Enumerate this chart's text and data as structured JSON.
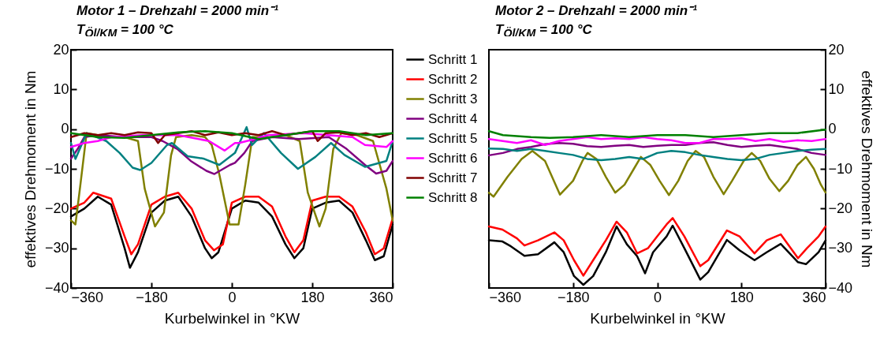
{
  "chart_data": [
    {
      "type": "line",
      "title": "Motor 1 – Drehzahl = 2000 min⁻¹",
      "subtitle": "T$_{Öl/KM}$ = 100 °C",
      "xlabel": "Kurbelwinkel in °KW",
      "ylabel": "effektives Drehmoment in Nm",
      "xlim": [
        -360,
        360
      ],
      "xticks": [
        -360,
        -180,
        0,
        180,
        360
      ],
      "ylim": [
        -40,
        20
      ],
      "yticks": [
        -40,
        -30,
        -20,
        -10,
        0,
        10,
        20
      ],
      "grid": false,
      "legend": "right",
      "series": [
        {
          "name": "Schritt 1",
          "color": "#000000",
          "x": [
            -360,
            -330,
            -300,
            -270,
            -240,
            -228,
            -210,
            -180,
            -150,
            -120,
            -90,
            -60,
            -45,
            -30,
            0,
            30,
            60,
            90,
            120,
            140,
            160,
            180,
            210,
            240,
            270,
            300,
            320,
            340,
            360
          ],
          "values": [
            -22,
            -20,
            -17,
            -19,
            -30,
            -34.9,
            -31,
            -21,
            -18,
            -17,
            -22,
            -30,
            -32.5,
            -31,
            -20,
            -18,
            -18.5,
            -22,
            -29,
            -32.5,
            -30,
            -20,
            -18.5,
            -18,
            -21,
            -28,
            -33,
            -32,
            -24
          ]
        },
        {
          "name": "Schritt 2",
          "color": "#ff0000",
          "x": [
            -360,
            -330,
            -310,
            -270,
            -240,
            -225,
            -210,
            -180,
            -150,
            -120,
            -90,
            -60,
            -40,
            -20,
            0,
            30,
            60,
            90,
            120,
            140,
            160,
            180,
            210,
            240,
            270,
            300,
            320,
            340,
            360
          ],
          "values": [
            -20,
            -18.5,
            -16,
            -17.5,
            -27,
            -31.5,
            -29,
            -19,
            -17,
            -16,
            -20,
            -28,
            -30.5,
            -29,
            -18.5,
            -17,
            -17,
            -19.5,
            -27,
            -31,
            -28,
            -18,
            -17,
            -17,
            -19.5,
            -26,
            -31.5,
            -30,
            -22.5
          ]
        },
        {
          "name": "Schritt 3",
          "color": "#808000",
          "x": [
            -360,
            -350,
            -340,
            -325,
            -300,
            -270,
            -240,
            -210,
            -195,
            -172,
            -152,
            -136,
            -125,
            -90,
            -60,
            -45,
            -28,
            -5,
            15,
            30,
            46,
            90,
            120,
            152,
            170,
            196,
            210,
            227,
            245,
            280,
            316,
            346,
            360
          ],
          "values": [
            -23,
            -24,
            -15,
            -1,
            -1.5,
            -2,
            -2,
            -3,
            -15,
            -24.5,
            -21,
            -6.6,
            -2,
            -1.5,
            -2,
            -4,
            -11.4,
            -24,
            -24,
            -14,
            -2,
            -2,
            -1.5,
            -3,
            -16,
            -24.5,
            -20,
            -5,
            -1,
            -1.5,
            -3,
            -15,
            -23
          ]
        },
        {
          "name": "Schritt 4",
          "color": "#800080",
          "x": [
            -360,
            -345,
            -330,
            -300,
            -240,
            -180,
            -155,
            -122,
            -92,
            -57,
            -39,
            -4,
            7,
            28,
            46,
            90,
            150,
            217,
            257,
            298,
            323,
            346,
            360
          ],
          "values": [
            -7.4,
            -5,
            -2,
            -1.5,
            -2,
            -2,
            -3,
            -5,
            -8,
            -10.5,
            -11.3,
            -9,
            -8.5,
            -6,
            -3,
            -2,
            -2.5,
            -2,
            -5,
            -9,
            -11.2,
            -10.5,
            -8
          ]
        },
        {
          "name": "Schritt 5",
          "color": "#008080",
          "x": [
            -360,
            -350,
            -325,
            -281,
            -251,
            -222,
            -205,
            -180,
            -145,
            -134,
            -99,
            -64,
            -28,
            7,
            33,
            45,
            72,
            110,
            148,
            187,
            222,
            252,
            298,
            346,
            360
          ],
          "values": [
            -3.5,
            -7.5,
            -1,
            -3,
            -6,
            -9.7,
            -10.3,
            -8.5,
            -4,
            -3.5,
            -6.8,
            -7.4,
            -9,
            -6,
            0.5,
            -4,
            -1,
            -6,
            -10,
            -7,
            -3.5,
            -6.5,
            -9.5,
            -8,
            -3
          ]
        },
        {
          "name": "Schritt 6",
          "color": "#ff00ff",
          "x": [
            -360,
            -330,
            -300,
            -270,
            -200,
            -120,
            -51,
            -16,
            7,
            16,
            51,
            81,
            160,
            270,
            298,
            346,
            360
          ],
          "values": [
            -4.5,
            -3.5,
            -3,
            -2,
            -1.5,
            -1.5,
            -3,
            -5.4,
            -3.5,
            -3.5,
            -2.5,
            -1.5,
            -1,
            -2,
            -4,
            -4.5,
            -3
          ]
        },
        {
          "name": "Schritt 7",
          "color": "#800000",
          "x": [
            -360,
            -330,
            -300,
            -270,
            -240,
            -210,
            -180,
            -165,
            -150,
            -120,
            -90,
            -60,
            -30,
            0,
            30,
            60,
            90,
            120,
            150,
            180,
            192,
            210,
            240,
            270,
            300,
            330,
            360
          ],
          "values": [
            -2,
            -1,
            -1.5,
            -1,
            -1.5,
            -0.8,
            -1,
            -3.5,
            -1.5,
            -1,
            -0.5,
            -1.5,
            -0.8,
            -1.5,
            -1,
            -1.5,
            -0.5,
            -1.5,
            -1,
            -0.5,
            -3,
            -1,
            -0.8,
            -1.5,
            -1,
            -2,
            -1
          ]
        },
        {
          "name": "Schritt 8",
          "color": "#008000",
          "x": [
            -360,
            -300,
            -240,
            -180,
            -120,
            -60,
            0,
            60,
            120,
            180,
            240,
            300,
            360
          ],
          "values": [
            -1,
            -2,
            -2.2,
            -1.5,
            -0.8,
            -0.5,
            -1,
            -2.5,
            -1.5,
            -0.5,
            -0.5,
            -1.5,
            -1
          ]
        }
      ]
    },
    {
      "type": "line",
      "title": "Motor 2 – Drehzahl = 2000 min⁻¹",
      "subtitle": "T$_{Öl/KM}$ = 100 °C",
      "xlabel": "Kurbelwinkel in °KW",
      "y2label": "effektives Drehmoment in Nm",
      "xlim": [
        -360,
        360
      ],
      "xticks": [
        -360,
        -180,
        0,
        180,
        360
      ],
      "y2lim": [
        -40,
        20
      ],
      "y2ticks": [
        -40,
        -30,
        -20,
        -10,
        0,
        10,
        20
      ],
      "grid": false,
      "legend": false,
      "series": [
        {
          "color": "#000000",
          "axis": "y2",
          "x": [
            -360,
            -331,
            -313,
            -284,
            -255,
            -220,
            -200,
            -178,
            -158,
            -137,
            -110,
            -87,
            -65,
            -43,
            -26,
            -9,
            20,
            33,
            58,
            92,
            109,
            149,
            176,
            208,
            234,
            264,
            301,
            318,
            345,
            360
          ],
          "values": [
            -28,
            -28.3,
            -29.5,
            -31.9,
            -31.5,
            -28.5,
            -31,
            -37,
            -39.2,
            -37,
            -31,
            -24.5,
            -29,
            -32,
            -36.3,
            -31,
            -27,
            -24.3,
            -30,
            -37.9,
            -36,
            -27.9,
            -30.5,
            -33,
            -31,
            -28.9,
            -33.5,
            -34,
            -31,
            -28
          ]
        },
        {
          "color": "#ff0000",
          "axis": "y2",
          "x": [
            -360,
            -331,
            -300,
            -284,
            -255,
            -220,
            -200,
            -178,
            -158,
            -137,
            -110,
            -87,
            -65,
            -43,
            -20,
            0,
            20,
            33,
            58,
            85,
            92,
            109,
            149,
            176,
            208,
            234,
            264,
            301,
            320,
            345,
            360
          ],
          "values": [
            -24.5,
            -25.3,
            -27.5,
            -29.3,
            -28,
            -26,
            -28,
            -33,
            -36.9,
            -33,
            -28,
            -23.3,
            -26,
            -31.3,
            -30,
            -27,
            -24,
            -22.4,
            -27,
            -33,
            -34.5,
            -33,
            -25.5,
            -27,
            -31.3,
            -28,
            -26.5,
            -32.5,
            -30,
            -27,
            -24.5
          ]
        },
        {
          "color": "#808000",
          "axis": "y2",
          "x": [
            -360,
            -350,
            -320,
            -290,
            -267,
            -240,
            -225,
            -208,
            -180,
            -160,
            -149,
            -130,
            -110,
            -90,
            -70,
            -50,
            -35,
            -15,
            5,
            25,
            45,
            65,
            82,
            100,
            120,
            142,
            160,
            185,
            202,
            220,
            240,
            261,
            280,
            300,
            318,
            335,
            350,
            360
          ],
          "values": [
            -16,
            -17,
            -12,
            -7.5,
            -5.5,
            -8,
            -12,
            -16.5,
            -13,
            -8,
            -6,
            -7.5,
            -12,
            -16,
            -14,
            -10,
            -7,
            -9,
            -13,
            -16.6,
            -13,
            -8,
            -5.5,
            -7,
            -12,
            -16.4,
            -13,
            -8,
            -6,
            -8,
            -12.5,
            -15.6,
            -13,
            -9,
            -7,
            -10,
            -14,
            -16
          ]
        },
        {
          "color": "#800080",
          "axis": "y2",
          "x": [
            -360,
            -330,
            -300,
            -270,
            -240,
            -210,
            -180,
            -150,
            -120,
            -90,
            -60,
            -30,
            0,
            30,
            60,
            90,
            120,
            150,
            180,
            210,
            240,
            270,
            300,
            330,
            360
          ],
          "values": [
            -6.6,
            -6,
            -5,
            -4.5,
            -3.8,
            -3.5,
            -3.7,
            -4.3,
            -4.5,
            -4.2,
            -4,
            -4.5,
            -4.2,
            -4,
            -4,
            -3.5,
            -3.3,
            -4,
            -4.5,
            -4.2,
            -4,
            -4.5,
            -5,
            -6,
            -6.5
          ]
        },
        {
          "color": "#008080",
          "axis": "y2",
          "x": [
            -360,
            -330,
            -300,
            -270,
            -240,
            -210,
            -180,
            -150,
            -120,
            -90,
            -60,
            -30,
            0,
            30,
            60,
            90,
            120,
            150,
            180,
            210,
            240,
            270,
            300,
            330,
            360
          ],
          "values": [
            -4.9,
            -5,
            -5.5,
            -5,
            -5.5,
            -6,
            -6.5,
            -7.5,
            -7.8,
            -7.5,
            -7,
            -7.5,
            -6,
            -5.5,
            -5.8,
            -6.5,
            -7,
            -7.5,
            -7.8,
            -7.5,
            -6.5,
            -6,
            -5.5,
            -5.2,
            -5
          ]
        },
        {
          "color": "#ff00ff",
          "axis": "y2",
          "x": [
            -360,
            -330,
            -300,
            -270,
            -240,
            -210,
            -180,
            -150,
            -120,
            -90,
            -60,
            -30,
            0,
            30,
            60,
            90,
            120,
            150,
            180,
            210,
            240,
            270,
            300,
            330,
            360
          ],
          "values": [
            -2.5,
            -3,
            -3.5,
            -2.8,
            -4,
            -3,
            -2.5,
            -2,
            -2.5,
            -2.3,
            -2.5,
            -2,
            -2.5,
            -2.8,
            -3.5,
            -3.5,
            -2.5,
            -2.5,
            -2.3,
            -3,
            -2.5,
            -3.2,
            -2.8,
            -3,
            -2.5
          ]
        },
        {
          "color": "#008000",
          "axis": "y2",
          "x": [
            -360,
            -330,
            -270,
            -230,
            -180,
            -120,
            -60,
            0,
            60,
            120,
            180,
            240,
            300,
            360
          ],
          "values": [
            -0.5,
            -1.5,
            -2,
            -2.2,
            -2,
            -1.5,
            -2,
            -1.5,
            -1.5,
            -2,
            -1.5,
            -1,
            -1,
            -0.1
          ]
        }
      ]
    }
  ]
}
